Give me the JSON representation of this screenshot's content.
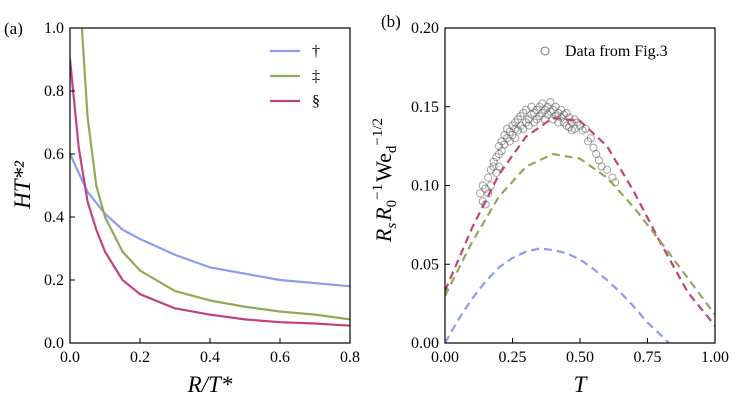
{
  "chart_data": [
    {
      "type": "line",
      "panel_label": "(a)",
      "xlabel": "R/T*",
      "ylabel": "HT*²",
      "xlim": [
        0.0,
        0.8
      ],
      "ylim": [
        0.0,
        1.0
      ],
      "xticks": [
        0.0,
        0.2,
        0.4,
        0.6,
        0.8
      ],
      "xtick_labels": [
        "0.0",
        "0.2",
        "0.4",
        "0.6",
        "0.8"
      ],
      "yticks": [
        0.0,
        0.2,
        0.4,
        0.6,
        0.8,
        1.0
      ],
      "ytick_labels": [
        "0.0",
        "0.2",
        "0.4",
        "0.6",
        "0.8",
        "1.0"
      ],
      "legend_position": "top-right",
      "series": [
        {
          "name": "†",
          "color": "#8c9cf0",
          "x": [
            0.0,
            0.05,
            0.1,
            0.15,
            0.2,
            0.3,
            0.4,
            0.5,
            0.6,
            0.7,
            0.8
          ],
          "y": [
            0.6,
            0.48,
            0.41,
            0.36,
            0.33,
            0.28,
            0.24,
            0.22,
            0.2,
            0.19,
            0.18
          ]
        },
        {
          "name": "‡",
          "color": "#8fab58",
          "x": [
            0.034,
            0.05,
            0.075,
            0.1,
            0.15,
            0.2,
            0.3,
            0.4,
            0.5,
            0.6,
            0.7,
            0.8
          ],
          "y": [
            1.0,
            0.72,
            0.5,
            0.4,
            0.29,
            0.23,
            0.165,
            0.135,
            0.115,
            0.1,
            0.09,
            0.075
          ]
        },
        {
          "name": "§",
          "color": "#c1427f",
          "x": [
            0.0,
            0.025,
            0.05,
            0.075,
            0.1,
            0.15,
            0.2,
            0.3,
            0.4,
            0.5,
            0.6,
            0.7,
            0.8
          ],
          "y": [
            0.9,
            0.62,
            0.45,
            0.36,
            0.29,
            0.2,
            0.155,
            0.11,
            0.09,
            0.075,
            0.066,
            0.062,
            0.055
          ]
        }
      ]
    },
    {
      "type": "scatter",
      "panel_label": "(b)",
      "xlabel": "T",
      "ylabel": "R_s R_0^−1 We_d^−1/2",
      "ylabel_parts": {
        "r": "R",
        "s": "s",
        "r0": "R",
        "zero": "0",
        "m1": "−1",
        "we": "We",
        "d": "d",
        "mhalf": "−1/2"
      },
      "xlim": [
        0.0,
        1.0
      ],
      "ylim": [
        0.0,
        0.2
      ],
      "xticks": [
        0.0,
        0.25,
        0.5,
        0.75,
        1.0
      ],
      "xtick_labels": [
        "0.00",
        "0.25",
        "0.50",
        "0.75",
        "1.00"
      ],
      "yticks": [
        0.0,
        0.05,
        0.1,
        0.15,
        0.2
      ],
      "ytick_labels": [
        "0.00",
        "0.05",
        "0.10",
        "0.15",
        "0.20"
      ],
      "legend_position": "top-right",
      "scatter": {
        "name": "Data from Fig.3",
        "color": "#555555",
        "x": [
          0.13,
          0.14,
          0.14,
          0.15,
          0.15,
          0.16,
          0.16,
          0.17,
          0.17,
          0.18,
          0.18,
          0.19,
          0.19,
          0.2,
          0.2,
          0.2,
          0.21,
          0.21,
          0.22,
          0.22,
          0.23,
          0.23,
          0.24,
          0.24,
          0.25,
          0.25,
          0.26,
          0.26,
          0.26,
          0.27,
          0.27,
          0.28,
          0.28,
          0.29,
          0.29,
          0.3,
          0.3,
          0.31,
          0.31,
          0.32,
          0.32,
          0.33,
          0.33,
          0.34,
          0.34,
          0.35,
          0.35,
          0.36,
          0.36,
          0.37,
          0.37,
          0.38,
          0.38,
          0.39,
          0.39,
          0.4,
          0.4,
          0.41,
          0.41,
          0.42,
          0.42,
          0.43,
          0.43,
          0.44,
          0.44,
          0.45,
          0.45,
          0.46,
          0.46,
          0.47,
          0.47,
          0.48,
          0.48,
          0.49,
          0.5,
          0.51,
          0.52,
          0.53,
          0.54,
          0.55,
          0.56,
          0.57,
          0.58,
          0.6,
          0.62,
          0.63
        ],
        "y": [
          0.095,
          0.09,
          0.1,
          0.088,
          0.098,
          0.095,
          0.105,
          0.11,
          0.1,
          0.115,
          0.112,
          0.118,
          0.108,
          0.12,
          0.112,
          0.125,
          0.128,
          0.122,
          0.132,
          0.126,
          0.13,
          0.136,
          0.134,
          0.128,
          0.138,
          0.132,
          0.13,
          0.136,
          0.14,
          0.135,
          0.142,
          0.138,
          0.144,
          0.136,
          0.146,
          0.14,
          0.148,
          0.142,
          0.138,
          0.145,
          0.15,
          0.146,
          0.14,
          0.148,
          0.142,
          0.15,
          0.144,
          0.146,
          0.152,
          0.148,
          0.142,
          0.15,
          0.145,
          0.153,
          0.147,
          0.148,
          0.142,
          0.15,
          0.144,
          0.146,
          0.14,
          0.148,
          0.143,
          0.145,
          0.14,
          0.146,
          0.138,
          0.143,
          0.137,
          0.14,
          0.135,
          0.142,
          0.136,
          0.14,
          0.138,
          0.135,
          0.136,
          0.128,
          0.13,
          0.124,
          0.12,
          0.116,
          0.112,
          0.11,
          0.105,
          0.102
        ]
      },
      "series": [
        {
          "name": "pink-dashed",
          "color": "#c1427f",
          "style": "dashed",
          "x": [
            0.0,
            0.1,
            0.2,
            0.3,
            0.4,
            0.5,
            0.6,
            0.7,
            0.8,
            0.9,
            1.0
          ],
          "y": [
            0.033,
            0.073,
            0.107,
            0.131,
            0.143,
            0.141,
            0.125,
            0.096,
            0.063,
            0.032,
            0.011
          ]
        },
        {
          "name": "green-dashed",
          "color": "#8fab58",
          "style": "dashed",
          "x": [
            0.0,
            0.1,
            0.2,
            0.3,
            0.4,
            0.5,
            0.6,
            0.7,
            0.8,
            0.9,
            1.0
          ],
          "y": [
            0.03,
            0.064,
            0.093,
            0.112,
            0.12,
            0.117,
            0.105,
            0.086,
            0.064,
            0.041,
            0.018
          ]
        },
        {
          "name": "blue-dashed",
          "color": "#8c9cf0",
          "style": "dashed",
          "x": [
            0.0,
            0.05,
            0.1,
            0.15,
            0.2,
            0.25,
            0.3,
            0.35,
            0.4,
            0.45,
            0.5,
            0.55,
            0.6,
            0.65,
            0.7,
            0.75,
            0.8,
            0.83
          ],
          "y": [
            0.0,
            0.015,
            0.028,
            0.039,
            0.048,
            0.054,
            0.058,
            0.06,
            0.059,
            0.057,
            0.053,
            0.047,
            0.04,
            0.032,
            0.023,
            0.013,
            0.005,
            0.0
          ]
        }
      ]
    }
  ]
}
